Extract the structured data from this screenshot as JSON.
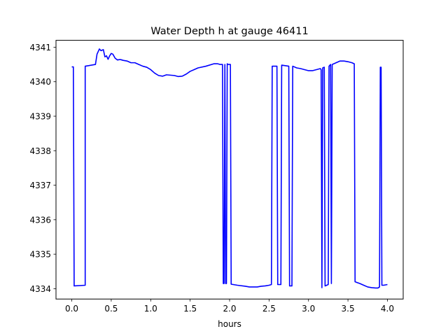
{
  "chart_data": {
    "type": "line",
    "title": "Water Depth h at gauge 46411",
    "xlabel": "hours",
    "ylabel": "",
    "xlim": [
      -0.2,
      4.2
    ],
    "ylim": [
      4333.7,
      4341.2
    ],
    "x_ticks": [
      0.0,
      0.5,
      1.0,
      1.5,
      2.0,
      2.5,
      3.0,
      3.5,
      4.0
    ],
    "x_tick_labels": [
      "0.0",
      "0.5",
      "1.0",
      "1.5",
      "2.0",
      "2.5",
      "3.0",
      "3.5",
      "4.0"
    ],
    "y_ticks": [
      4334,
      4335,
      4336,
      4337,
      4338,
      4339,
      4340,
      4341
    ],
    "y_tick_labels": [
      "4334",
      "4335",
      "4336",
      "4337",
      "4338",
      "4339",
      "4340",
      "4341"
    ],
    "grid": false,
    "series": [
      {
        "color": "#0000ff",
        "x": [
          0.0,
          0.02,
          0.03,
          0.17,
          0.17,
          0.3,
          0.32,
          0.35,
          0.37,
          0.4,
          0.42,
          0.44,
          0.46,
          0.48,
          0.5,
          0.52,
          0.55,
          0.58,
          0.6,
          0.62,
          0.65,
          0.7,
          0.75,
          0.8,
          0.85,
          0.9,
          0.95,
          1.0,
          1.05,
          1.1,
          1.15,
          1.2,
          1.3,
          1.35,
          1.4,
          1.45,
          1.5,
          1.55,
          1.6,
          1.7,
          1.8,
          1.85,
          1.88,
          1.91,
          1.92,
          1.93,
          1.94,
          1.95,
          1.96,
          1.97,
          1.98,
          2.0,
          2.01,
          2.02,
          2.1,
          2.2,
          2.25,
          2.3,
          2.35,
          2.4,
          2.45,
          2.5,
          2.53,
          2.54,
          2.6,
          2.61,
          2.65,
          2.66,
          2.75,
          2.76,
          2.79,
          2.8,
          2.85,
          2.9,
          2.95,
          3.0,
          3.05,
          3.1,
          3.15,
          3.16,
          3.17,
          3.18,
          3.2,
          3.21,
          3.25,
          3.26,
          3.28,
          3.29,
          3.3,
          3.35,
          3.4,
          3.45,
          3.5,
          3.55,
          3.58,
          3.59,
          3.65,
          3.7,
          3.75,
          3.8,
          3.85,
          3.88,
          3.9,
          3.91,
          3.92,
          3.93,
          3.95,
          4.0
        ],
        "y": [
          4340.43,
          4340.43,
          4334.08,
          4334.1,
          4340.45,
          4340.5,
          4340.8,
          4340.95,
          4340.9,
          4340.93,
          4340.72,
          4340.75,
          4340.65,
          4340.75,
          4340.82,
          4340.8,
          4340.68,
          4340.63,
          4340.64,
          4340.64,
          4340.62,
          4340.6,
          4340.55,
          4340.55,
          4340.5,
          4340.45,
          4340.42,
          4340.35,
          4340.25,
          4340.18,
          4340.16,
          4340.2,
          4340.18,
          4340.15,
          4340.16,
          4340.22,
          4340.3,
          4340.35,
          4340.4,
          4340.45,
          4340.52,
          4340.52,
          4340.5,
          4340.5,
          4334.15,
          4334.15,
          4340.5,
          4334.15,
          4334.15,
          4340.52,
          4340.5,
          4340.5,
          4340.5,
          4334.13,
          4334.1,
          4334.07,
          4334.05,
          4334.05,
          4334.05,
          4334.07,
          4334.08,
          4334.1,
          4334.12,
          4340.45,
          4340.45,
          4334.12,
          4334.12,
          4340.48,
          4340.45,
          4334.08,
          4334.08,
          4340.45,
          4340.4,
          4340.38,
          4340.35,
          4340.32,
          4340.32,
          4340.35,
          4340.38,
          4340.35,
          4334.03,
          4340.4,
          4340.42,
          4334.08,
          4334.12,
          4340.45,
          4340.5,
          4334.15,
          4340.5,
          4340.55,
          4340.6,
          4340.6,
          4340.58,
          4340.55,
          4340.52,
          4334.2,
          4334.15,
          4334.1,
          4334.05,
          4334.03,
          4334.02,
          4334.02,
          4334.05,
          4340.42,
          4340.42,
          4334.1,
          4334.1,
          4334.12
        ]
      }
    ]
  }
}
